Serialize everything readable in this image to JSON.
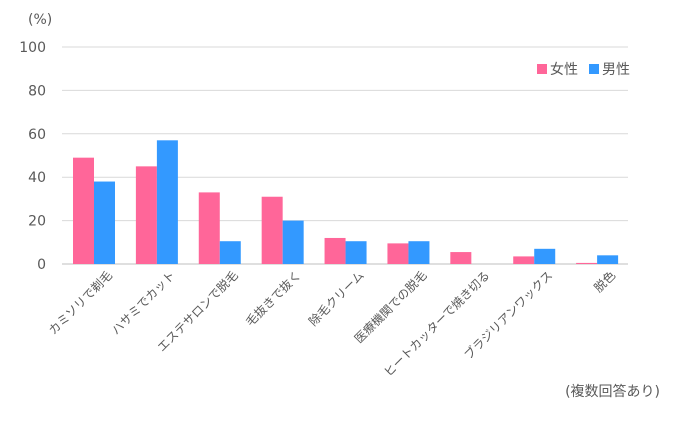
{
  "chart_data": {
    "type": "bar",
    "y_unit_label": "(%)",
    "note": "(複数回答あり)",
    "categories": [
      "カミソリで剃毛",
      "ハサミでカット",
      "エステサロンで脱毛",
      "毛抜きで抜く",
      "除毛クリーム",
      "医療機関での脱毛",
      "ヒートカッターで焼き切る",
      "ブラジリアンワックス",
      "脱色"
    ],
    "series": [
      {
        "name": "女性",
        "color": "#ff6699",
        "values": [
          49,
          45,
          33,
          31,
          12,
          9.5,
          5.5,
          3.5,
          0.5
        ]
      },
      {
        "name": "男性",
        "color": "#3399ff",
        "values": [
          38,
          57,
          10.5,
          20,
          10.5,
          10.5,
          0,
          7,
          4
        ]
      }
    ],
    "ylim": [
      0,
      100
    ],
    "yticks": [
      0,
      20,
      40,
      60,
      80,
      100
    ],
    "grid": true,
    "legend_position": "top-right"
  }
}
